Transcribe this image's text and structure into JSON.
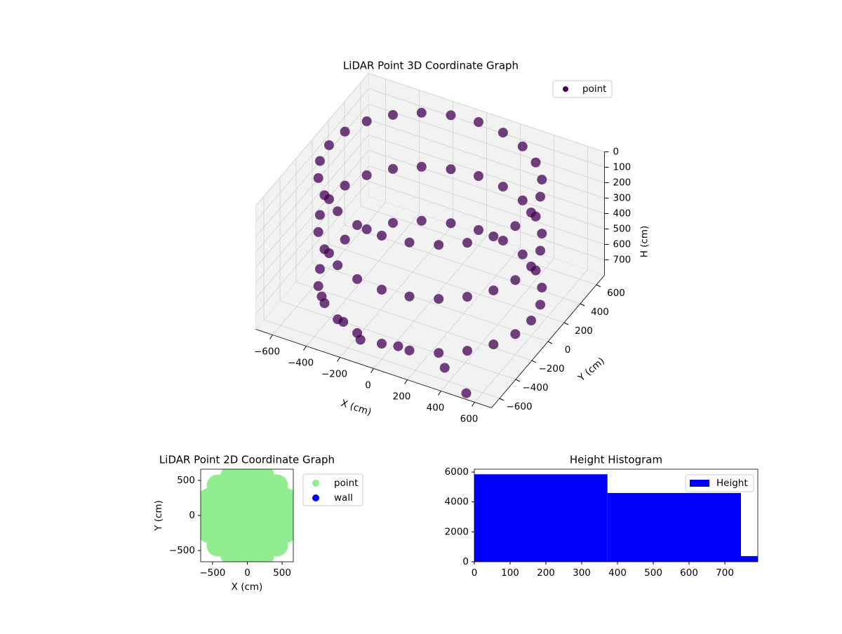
{
  "chart_data": [
    {
      "type": "scatter3d",
      "title": "LiDAR Point 3D Coordinate Graph",
      "xlabel": "X (cm)",
      "ylabel": "Y (cm)",
      "zlabel": "H (cm)",
      "xlim": [
        -700,
        700
      ],
      "ylim": [
        -700,
        700
      ],
      "zlim": [
        0,
        800
      ],
      "z_inverted": true,
      "xticks": [
        {
          "value": -600,
          "label": "−600"
        },
        {
          "value": -400,
          "label": "−400"
        },
        {
          "value": -200,
          "label": "−200"
        },
        0,
        200,
        400,
        600
      ],
      "yticks": [
        {
          "value": -600,
          "label": "−600"
        },
        {
          "value": -400,
          "label": "−400"
        },
        {
          "value": -200,
          "label": "−200"
        },
        0,
        200,
        400,
        600
      ],
      "zticks": [
        0,
        100,
        200,
        300,
        400,
        500,
        600,
        700
      ],
      "grid": true,
      "legend": "upper right",
      "series": [
        {
          "name": "point",
          "color": "#440154",
          "x": [
            600,
            580,
            520,
            424,
            300,
            155,
            0,
            -155,
            -300,
            -424,
            -520,
            -580,
            -600,
            -580,
            -520,
            -424,
            -300,
            -155,
            0,
            155,
            300,
            424,
            520,
            580,
            600,
            580,
            520,
            424,
            300,
            155,
            0,
            -155,
            -300,
            -424,
            -520,
            -580,
            -600,
            -580,
            -520,
            -424,
            -300,
            -155,
            0,
            155,
            300,
            424,
            520,
            580,
            600,
            580,
            520,
            424,
            300,
            155,
            0,
            -155,
            -300,
            -424,
            -520,
            -580,
            -600,
            -580,
            -520,
            -424,
            -300,
            -155,
            0,
            155,
            300,
            424,
            520,
            580,
            -500,
            -300,
            -150,
            50,
            350,
            550
          ],
          "y": [
            0,
            155,
            300,
            424,
            520,
            580,
            600,
            580,
            520,
            424,
            300,
            155,
            0,
            -155,
            -300,
            -424,
            -520,
            -580,
            -600,
            -580,
            -520,
            -424,
            -300,
            -155,
            0,
            155,
            300,
            424,
            520,
            580,
            600,
            580,
            520,
            424,
            300,
            155,
            0,
            -155,
            -300,
            -424,
            -520,
            -580,
            -600,
            -580,
            -520,
            -424,
            -300,
            -155,
            0,
            155,
            300,
            424,
            520,
            580,
            600,
            580,
            520,
            424,
            300,
            155,
            0,
            -155,
            -300,
            -424,
            -520,
            -580,
            -600,
            -580,
            -520,
            -424,
            -300,
            -155,
            -300,
            -450,
            -550,
            -500,
            -550,
            -700
          ],
          "z": [
            0,
            0,
            0,
            0,
            0,
            0,
            0,
            0,
            0,
            0,
            0,
            0,
            0,
            0,
            0,
            0,
            0,
            0,
            0,
            0,
            0,
            0,
            0,
            0,
            350,
            350,
            350,
            350,
            350,
            350,
            350,
            350,
            350,
            350,
            350,
            350,
            350,
            350,
            350,
            350,
            350,
            350,
            350,
            350,
            350,
            350,
            350,
            350,
            700,
            700,
            700,
            700,
            700,
            700,
            700,
            700,
            700,
            700,
            700,
            700,
            700,
            700,
            700,
            700,
            700,
            700,
            700,
            700,
            700,
            700,
            700,
            700,
            760,
            760,
            760,
            760,
            760,
            760
          ]
        }
      ]
    },
    {
      "type": "scatter",
      "title": "LiDAR Point 2D Coordinate Graph",
      "xlabel": "X (cm)",
      "ylabel": "Y (cm)",
      "xlim": [
        -670,
        660
      ],
      "ylim": [
        -660,
        660
      ],
      "xticks": [
        {
          "value": -500,
          "label": "−500"
        },
        0,
        500
      ],
      "yticks": [
        {
          "value": -500,
          "label": "−500"
        },
        0,
        500
      ],
      "legend": "outside right",
      "series": [
        {
          "name": "point",
          "color": "#90ee90",
          "x": [
            0,
            200,
            141,
            0,
            -141,
            -200,
            -141,
            0,
            141,
            400,
            346,
            200,
            0,
            -200,
            -346,
            -400,
            -346,
            -200,
            0,
            200,
            346,
            600,
            554,
            424,
            230,
            0,
            -230,
            -424,
            -554,
            -600,
            -554,
            -424,
            -230,
            0,
            230,
            424,
            554
          ],
          "y": [
            0,
            0,
            141,
            200,
            141,
            0,
            -141,
            -200,
            -141,
            0,
            200,
            346,
            400,
            346,
            200,
            0,
            -200,
            -346,
            -400,
            -346,
            -200,
            0,
            230,
            424,
            554,
            600,
            554,
            424,
            230,
            0,
            -230,
            -424,
            -554,
            -600,
            -554,
            -424,
            -230
          ]
        },
        {
          "name": "wall",
          "color": "#0000ff",
          "x": [],
          "y": []
        }
      ]
    },
    {
      "type": "histogram",
      "title": "Height Histogram",
      "bins": [
        0,
        372,
        745,
        792
      ],
      "series": [
        {
          "name": "Height",
          "color": "#0000ff",
          "values": [
            5850,
            4600,
            380
          ]
        }
      ],
      "xlim": [
        0,
        792
      ],
      "ylim": [
        0,
        6190
      ],
      "xticks": [
        0,
        100,
        200,
        300,
        400,
        500,
        600,
        700
      ],
      "yticks": [
        0,
        2000,
        4000,
        6000
      ],
      "legend": "upper right"
    }
  ]
}
